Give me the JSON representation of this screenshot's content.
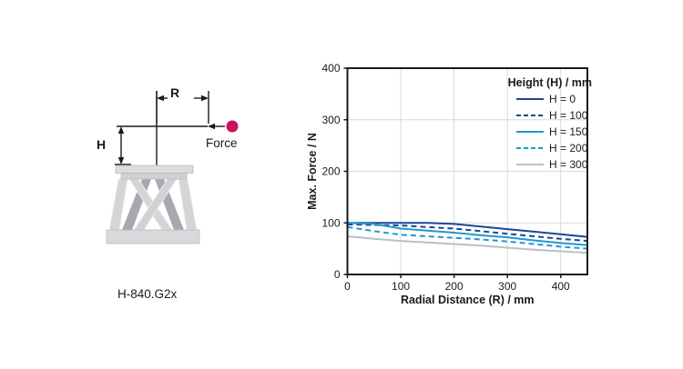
{
  "diagram": {
    "r_label": "R",
    "h_label": "H",
    "force_label": "Force",
    "model_label": "H-840.G2x",
    "force_dot_color": "#c5135c"
  },
  "chart_data": {
    "type": "line",
    "title": "",
    "xlabel": "Radial Distance (R) / mm",
    "ylabel": "Max. Force / N",
    "xlim": [
      0,
      450
    ],
    "ylim": [
      0,
      400
    ],
    "x_ticks": [
      0,
      100,
      200,
      300,
      400
    ],
    "y_ticks": [
      0,
      100,
      200,
      300,
      400
    ],
    "grid": true,
    "grid_color": "#d9d9d9",
    "axis_color": "#1a1a1a",
    "legend_title": "Height (H) / mm",
    "legend_position": "top-right",
    "x": [
      0,
      50,
      100,
      150,
      200,
      250,
      300,
      350,
      400,
      450
    ],
    "series": [
      {
        "name": "H = 0",
        "color": "#1b4693",
        "dash": "solid",
        "values": [
          100,
          100,
          100,
          100,
          98,
          93,
          88,
          83,
          78,
          73
        ]
      },
      {
        "name": "H = 100",
        "color": "#1b4693",
        "dash": "dashed",
        "values": [
          97,
          96,
          95,
          92,
          89,
          84,
          79,
          74,
          69,
          65
        ]
      },
      {
        "name": "H = 150",
        "color": "#2496d2",
        "dash": "solid",
        "values": [
          100,
          98,
          89,
          85,
          81,
          76,
          72,
          66,
          61,
          57
        ]
      },
      {
        "name": "H = 200",
        "color": "#2496d2",
        "dash": "dashed",
        "values": [
          92,
          84,
          77,
          74,
          71,
          68,
          64,
          59,
          54,
          50
        ]
      },
      {
        "name": "H = 300",
        "color": "#b9c0c6",
        "dash": "solid",
        "values": [
          74,
          69,
          65,
          62,
          59,
          56,
          52,
          48,
          45,
          42
        ]
      }
    ]
  }
}
